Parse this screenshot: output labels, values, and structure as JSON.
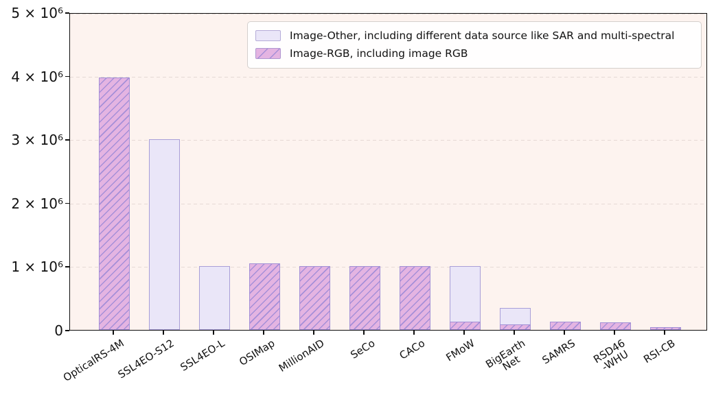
{
  "chart_data": {
    "type": "bar",
    "title": "",
    "xlabel": "",
    "ylabel": "",
    "ylim": [
      0,
      5000000
    ],
    "grid": "horizontal dashed",
    "legend_position": "upper right",
    "categories": [
      "OpticalRS-4M",
      "SSL4EO-S12",
      "SSL4EO-L",
      "OSIMap",
      "MillionAID",
      "SeCo",
      "CACo",
      "FMoW",
      "BigEarth\nNet",
      "SAMRS",
      "RSD46\n-WHU",
      "RSI-CB"
    ],
    "series": [
      {
        "name": "Image-Other, including different data source like SAR and multi-spectral",
        "key": "other",
        "values": [
          null,
          3000000,
          1000000,
          null,
          null,
          null,
          null,
          1000000,
          350000,
          null,
          null,
          null
        ]
      },
      {
        "name": "Image-RGB, including image RGB",
        "key": "rgb",
        "values": [
          3970000,
          null,
          null,
          1050000,
          1000000,
          1000000,
          1000000,
          130000,
          90000,
          130000,
          120000,
          40000
        ]
      }
    ],
    "yticks": [
      {
        "value": 0,
        "label": "0"
      },
      {
        "value": 1000000,
        "label": "1 × 10⁶"
      },
      {
        "value": 2000000,
        "label": "2 × 10⁶"
      },
      {
        "value": 3000000,
        "label": "3 × 10⁶"
      },
      {
        "value": 4000000,
        "label": "4 × 10⁶"
      },
      {
        "value": 5000000,
        "label": "5 × 10⁶"
      }
    ]
  },
  "legend": {
    "items": [
      {
        "label": "Image-Other, including different data source like SAR and multi-spectral"
      },
      {
        "label": "Image-RGB, including image RGB"
      }
    ]
  },
  "colors": {
    "figure_bg": "#ffffff",
    "axes_bg": "#fdf3ef",
    "other_fill": "#eae6f8",
    "other_edge": "#a89ed8",
    "rgb_fill": "#e4b4e2",
    "rgb_edge": "#a28fd6",
    "hatch": "#a58fd8",
    "grid": "#e5d9d5",
    "spine": "#0d0d0d"
  }
}
